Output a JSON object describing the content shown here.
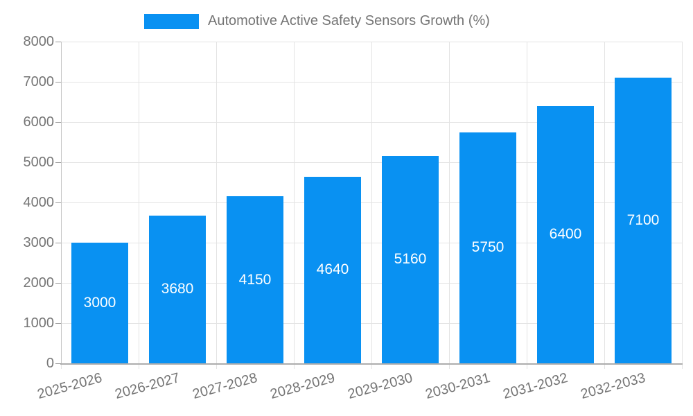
{
  "chart_data": {
    "type": "bar",
    "title": "Automotive Active Safety Sensors Growth (%)",
    "legend": {
      "position": "top",
      "entries": [
        "Automotive Active Safety Sensors Growth (%)"
      ]
    },
    "categories": [
      "2025-2026",
      "2026-2027",
      "2027-2028",
      "2028-2029",
      "2029-2030",
      "2030-2031",
      "2031-2032",
      "2032-2033"
    ],
    "series": [
      {
        "name": "Automotive Active Safety Sensors Growth (%)",
        "values": [
          3000,
          3680,
          4150,
          4640,
          5160,
          5750,
          6400,
          7100
        ]
      }
    ],
    "bar_value_labels": [
      "3000",
      "3680",
      "4150",
      "4640",
      "5160",
      "5750",
      "6400",
      "7100"
    ],
    "xlabel": "",
    "ylabel": "",
    "ylim": [
      0,
      8000
    ],
    "y_tick_step": 1000,
    "y_ticks": [
      0,
      1000,
      2000,
      3000,
      4000,
      5000,
      6000,
      7000,
      8000
    ],
    "grid": true,
    "x_label_rotation_deg": -15,
    "colors": {
      "bar": "#0991F2",
      "bar_label_text": "#FFFFFF",
      "axis_text": "#757575",
      "gridline": "#E3E3E3",
      "axis_line_y": "#C4C4C4",
      "axis_line_x": "#ADADAD",
      "tick": "#9B9B9B",
      "background": "#FFFFFF"
    }
  }
}
